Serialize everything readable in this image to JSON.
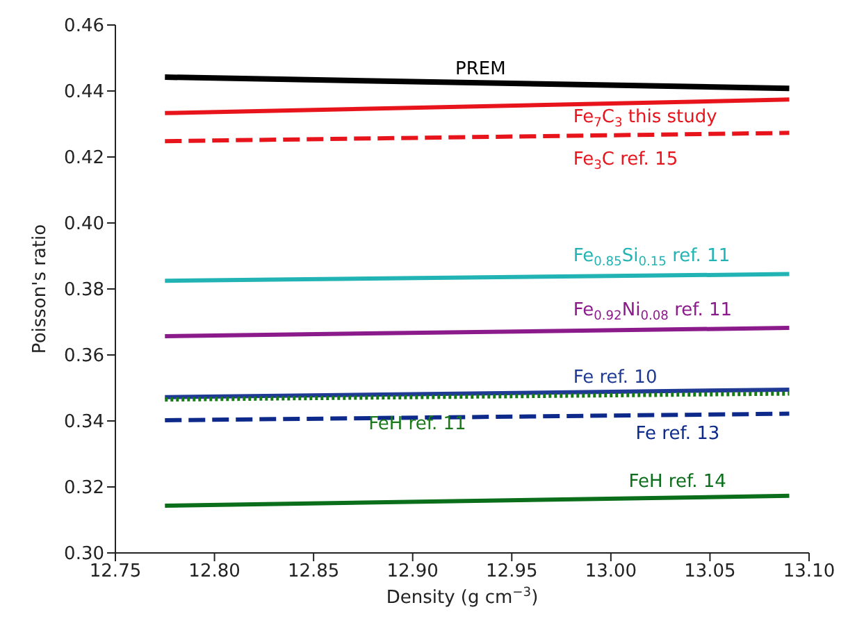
{
  "chart_data": {
    "type": "line",
    "xlabel": "Density (g cm$^{−3}$)",
    "ylabel": "Poisson's ratio",
    "x": [
      12.775,
      13.09
    ],
    "xlim": [
      12.75,
      13.1
    ],
    "xticks": [
      {
        "value": 12.75,
        "label": "12.75"
      },
      {
        "value": 12.8,
        "label": "12.80"
      },
      {
        "value": 12.85,
        "label": "12.85"
      },
      {
        "value": 12.9,
        "label": "12.90"
      },
      {
        "value": 12.95,
        "label": "12.95"
      },
      {
        "value": 13,
        "label": "13.00"
      },
      {
        "value": 13.05,
        "label": "13.05"
      },
      {
        "value": 13.1,
        "label": "13.10"
      }
    ],
    "ylim": [
      0.3,
      0.46
    ],
    "yticks": [
      {
        "value": 0.3,
        "label": "0.30"
      },
      {
        "value": 0.32,
        "label": "0.32"
      },
      {
        "value": 0.34,
        "label": "0.34"
      },
      {
        "value": 0.36,
        "label": "0.36"
      },
      {
        "value": 0.38,
        "label": "0.38"
      },
      {
        "value": 0.4,
        "label": "0.40"
      },
      {
        "value": 0.42,
        "label": "0.42"
      },
      {
        "value": 0.44,
        "label": "0.44"
      },
      {
        "value": 0.46,
        "label": "0.46"
      }
    ],
    "grid": false,
    "legend": false,
    "marker": "none",
    "series": [
      {
        "name": "PREM",
        "color": "#000000",
        "line_style": "solid",
        "values": [
          0.4442,
          0.4408
        ]
      },
      {
        "name": "Fe$_{7}$C$_{3}$ this study",
        "color": "#e8141c",
        "line_style": "solid",
        "values": [
          0.4333,
          0.4374
        ]
      },
      {
        "name": "Fe$_{3}$C ref. 15",
        "color": "#e8141c",
        "line_style": "dashed",
        "values": [
          0.4248,
          0.4273
        ]
      },
      {
        "name": "Fe$_{0.85}$Si$_{0.15}$ ref. 11",
        "color": "#22b4b4",
        "line_style": "solid",
        "values": [
          0.3825,
          0.3845
        ]
      },
      {
        "name": "Fe$_{0.92}$Ni$_{0.08}$ ref. 11",
        "color": "#8b1a8b",
        "line_style": "solid",
        "values": [
          0.3657,
          0.3682
        ]
      },
      {
        "name": "Fe ref. 10",
        "color": "#1f3a93",
        "line_style": "solid",
        "values": [
          0.3472,
          0.3495
        ]
      },
      {
        "name": "FeH ref. 11",
        "color": "#1a7a1a",
        "line_style": "dotted",
        "values": [
          0.3465,
          0.3483
        ]
      },
      {
        "name": "Fe ref. 13",
        "color": "#0d2a8a",
        "line_style": "dashed",
        "values": [
          0.3402,
          0.3422
        ]
      },
      {
        "name": "FeH ref. 14",
        "color": "#0b6e1b",
        "line_style": "solid",
        "values": [
          0.3143,
          0.3173
        ]
      }
    ]
  }
}
